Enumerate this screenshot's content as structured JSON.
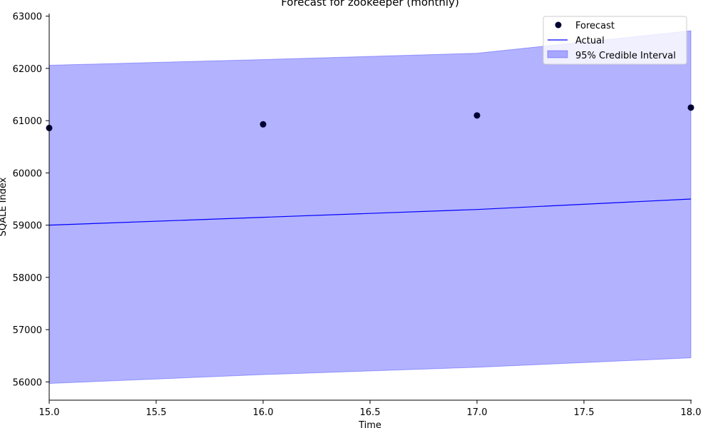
{
  "chart_data": {
    "type": "line",
    "title": "Forecast for zookeeper (monthly)",
    "xlabel": "Time",
    "ylabel": "SQALE Index",
    "xlim": [
      15.0,
      18.0
    ],
    "ylim": [
      55650,
      63050
    ],
    "x_ticks": [
      "15.0",
      "15.5",
      "16.0",
      "16.5",
      "17.0",
      "17.5",
      "18.0"
    ],
    "y_ticks": [
      "56000",
      "57000",
      "58000",
      "59000",
      "60000",
      "61000",
      "62000",
      "63000"
    ],
    "grid": false,
    "legend_position": "top-right",
    "series": [
      {
        "name": "Forecast",
        "kind": "scatter",
        "color": "#000033",
        "x": [
          15,
          16,
          17,
          18
        ],
        "y": [
          60860,
          60930,
          61100,
          61250
        ]
      },
      {
        "name": "Actual",
        "kind": "line",
        "color": "#0000ff",
        "x": [
          15,
          16,
          17,
          18
        ],
        "y": [
          59000,
          59150,
          59300,
          59500
        ]
      },
      {
        "name": "95% Credible Interval",
        "kind": "band",
        "color": "#0000ff",
        "x": [
          15,
          16,
          17,
          18
        ],
        "lower": [
          55970,
          56140,
          56280,
          56460
        ],
        "upper": [
          62060,
          62170,
          62290,
          62720
        ]
      }
    ]
  }
}
